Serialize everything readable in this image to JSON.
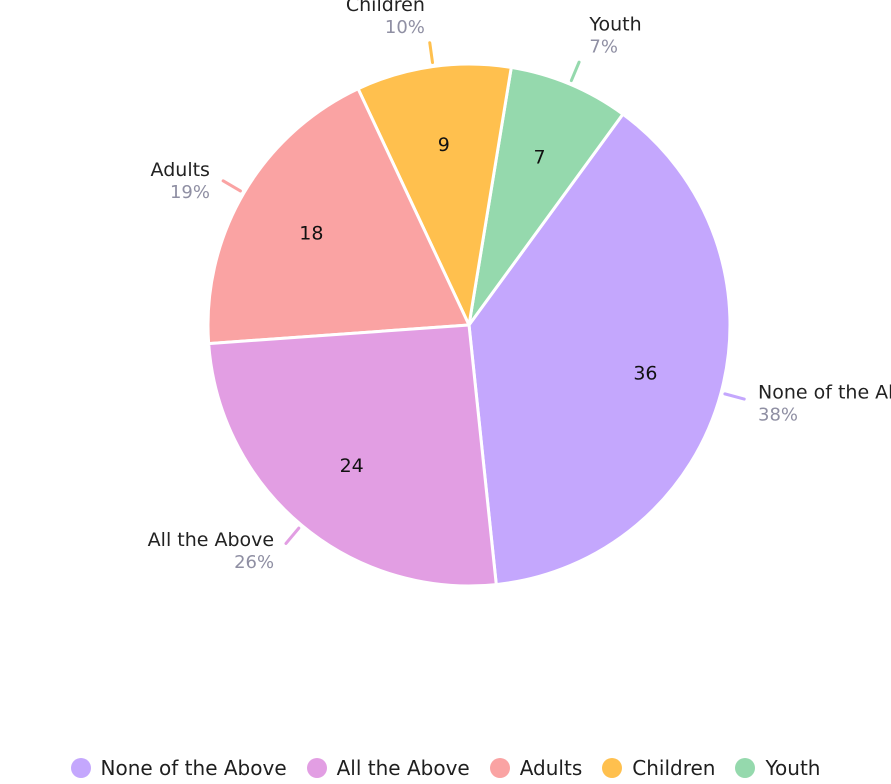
{
  "chart_data": {
    "type": "pie",
    "slices": [
      {
        "label": "None of the Above",
        "value": 36,
        "percent": "38%",
        "color": "#c4a7fd"
      },
      {
        "label": "Youth",
        "value": 7,
        "percent": "7%",
        "color": "#95d9ad"
      },
      {
        "label": "Children",
        "value": 9,
        "percent": "10%",
        "color": "#ffc04e"
      },
      {
        "label": "Adults",
        "value": 18,
        "percent": "19%",
        "color": "#faa3a3"
      },
      {
        "label": "All the Above",
        "value": 24,
        "percent": "26%",
        "color": "#e29ee3"
      }
    ],
    "legend": {
      "placement": "bottom",
      "items": [
        {
          "label": "None of the Above",
          "color": "#c4a7fd"
        },
        {
          "label": "All the Above",
          "color": "#e29ee3"
        },
        {
          "label": "Adults",
          "color": "#faa3a3"
        },
        {
          "label": "Children",
          "color": "#ffc04e"
        },
        {
          "label": "Youth",
          "color": "#95d9ad"
        }
      ]
    }
  }
}
